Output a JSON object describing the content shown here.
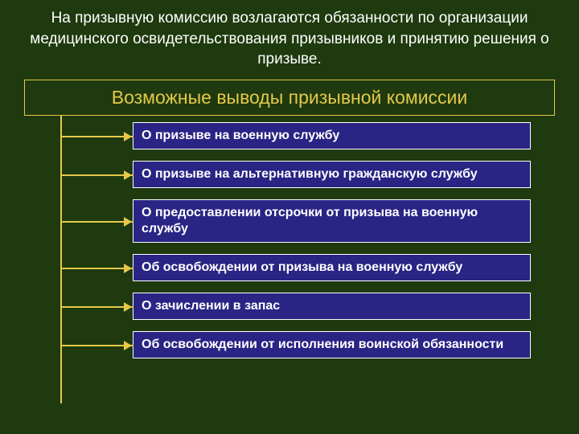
{
  "colors": {
    "background": "#1e3a0e",
    "header_text": "#ffffff",
    "title_bg": "#1e3a0e",
    "title_border": "#e6c84a",
    "title_text": "#e6c84a",
    "item_bg": "#2a2485",
    "item_border": "#ffffff",
    "item_text": "#ffffff",
    "line": "#e6c84a",
    "arrow": "#e6c84a"
  },
  "layout": {
    "item_gap": 14,
    "tree_indent": 75,
    "branch_hlen": 90,
    "vline_height": 358
  },
  "header": "На призывную комиссию возлагаются обязанности по организации медицинского освидетельствования призывников  и принятию решения о призыве.",
  "title": "Возможные выводы призывной комиссии",
  "items": [
    "О призыве на военную службу",
    "О призыве на альтернативную гражданскую службу",
    "О предоставлении отсрочки от призыва на военную службу",
    "Об освобождении от призыва на военную службу",
    "О зачислении в запас",
    "Об освобождении от исполнения воинской обязанности"
  ]
}
